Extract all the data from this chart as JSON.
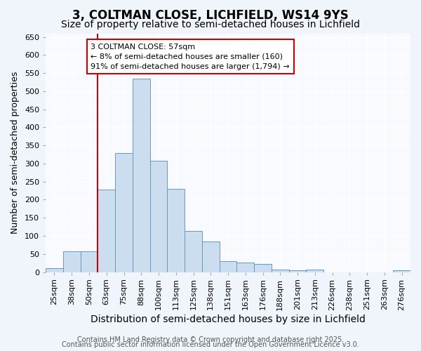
{
  "title1": "3, COLTMAN CLOSE, LICHFIELD, WS14 9YS",
  "title2": "Size of property relative to semi-detached houses in Lichfield",
  "xlabel": "Distribution of semi-detached houses by size in Lichfield",
  "ylabel": "Number of semi-detached properties",
  "bar_labels": [
    "25sqm",
    "38sqm",
    "50sqm",
    "63sqm",
    "75sqm",
    "88sqm",
    "100sqm",
    "113sqm",
    "125sqm",
    "138sqm",
    "151sqm",
    "163sqm",
    "176sqm",
    "188sqm",
    "201sqm",
    "213sqm",
    "226sqm",
    "238sqm",
    "251sqm",
    "263sqm",
    "276sqm"
  ],
  "bar_values": [
    10,
    58,
    58,
    228,
    330,
    535,
    308,
    230,
    113,
    85,
    30,
    27,
    22,
    7,
    5,
    7,
    0,
    0,
    0,
    0,
    5
  ],
  "bar_color": "#ccddf0",
  "bar_edge_color": "#6699bb",
  "red_line_index": 2.5,
  "annotation_text": "3 COLTMAN CLOSE: 57sqm\n← 8% of semi-detached houses are smaller (160)\n91% of semi-detached houses are larger (1,794) →",
  "annotation_box_color": "#ffffff",
  "annotation_box_edge_color": "#cc0000",
  "red_line_color": "#cc0000",
  "ylim": [
    0,
    660
  ],
  "yticks": [
    0,
    50,
    100,
    150,
    200,
    250,
    300,
    350,
    400,
    450,
    500,
    550,
    600,
    650
  ],
  "bg_color": "#f0f4fb",
  "plot_bg_color": "#f8faff",
  "grid_color": "#ffffff",
  "footer1": "Contains HM Land Registry data © Crown copyright and database right 2025.",
  "footer2": "Contains public sector information licensed under the Open Government Licence v3.0.",
  "title1_fontsize": 12,
  "title2_fontsize": 10,
  "xlabel_fontsize": 10,
  "ylabel_fontsize": 9,
  "tick_fontsize": 8,
  "annotation_fontsize": 8,
  "footer_fontsize": 7
}
